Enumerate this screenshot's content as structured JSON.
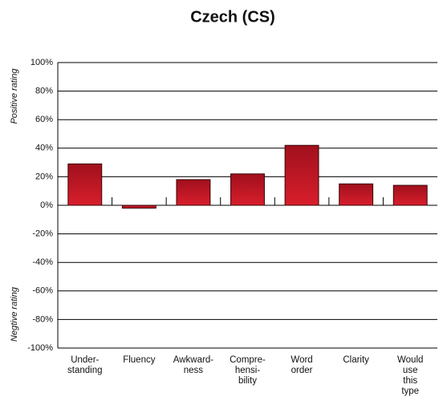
{
  "chart_data": {
    "type": "bar",
    "title": "Czech (CS)",
    "y_label_positive": "Positive rating",
    "y_label_negative": "Negtive rating",
    "categories": [
      "Under-\nstanding",
      "Fluency",
      "Awkward-\nness",
      "Compre-\nhensi-\nbility",
      "Word\norder",
      "Clarity",
      "Would\nuse\nthis\ntype"
    ],
    "values": [
      29,
      -2,
      18,
      22,
      42,
      15,
      14
    ],
    "color": "#d81e2c",
    "ylim": [
      -100,
      100
    ],
    "yticks": [
      {
        "value": -100,
        "label": "-100%"
      },
      {
        "value": -80,
        "label": "-80%"
      },
      {
        "value": -60,
        "label": "-60%"
      },
      {
        "value": -40,
        "label": "-40%"
      },
      {
        "value": -20,
        "label": "-20%"
      },
      {
        "value": 0,
        "label": "0%"
      },
      {
        "value": 20,
        "label": "20%"
      },
      {
        "value": 40,
        "label": "40%"
      },
      {
        "value": 60,
        "label": "60%"
      },
      {
        "value": 80,
        "label": "80%"
      },
      {
        "value": 100,
        "label": "100%"
      }
    ],
    "grid": true
  }
}
